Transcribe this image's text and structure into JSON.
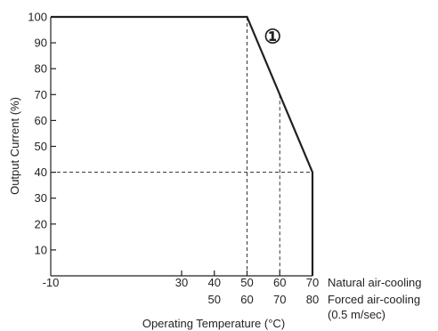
{
  "chart_data": {
    "type": "line",
    "xlabel": "Operating Temperature (°C)",
    "ylabel": "Output Current (%)",
    "xlim": [
      -10,
      70
    ],
    "ylim": [
      0,
      100
    ],
    "y_ticks": [
      "10",
      "20",
      "30",
      "40",
      "50",
      "60",
      "70",
      "80",
      "90",
      "100"
    ],
    "x_ticks_natural": [
      "-10",
      "30",
      "40",
      "50",
      "60",
      "70"
    ],
    "x_ticks_natural_values": [
      -10,
      30,
      40,
      50,
      60,
      70
    ],
    "x_ticks_forced": [
      "50",
      "60",
      "70",
      "80"
    ],
    "x_ticks_forced_values": [
      40,
      50,
      60,
      70
    ],
    "axis_notes": {
      "natural": "Natural air-cooling",
      "forced": "Forced air-cooling",
      "forced_sub": "(0.5 m/sec)"
    },
    "series": [
      {
        "x": [
          -10,
          50,
          70,
          70
        ],
        "y": [
          100,
          100,
          40,
          0
        ]
      }
    ],
    "reference_lines": {
      "vertical": [
        {
          "x": 50,
          "y_top": 100
        },
        {
          "x": 60,
          "y_top": 70
        }
      ],
      "horizontal": [
        {
          "y": 40,
          "x_right": 70
        }
      ]
    },
    "annotation": {
      "text": "①",
      "x": 54,
      "y": 94
    },
    "grid": false
  }
}
